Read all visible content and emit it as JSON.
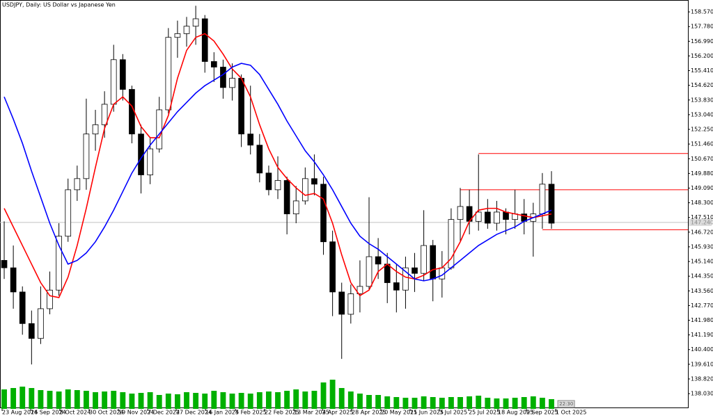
{
  "chart_data": {
    "type": "candlestick",
    "title": "USDJPY, Daily:  US Dollar vs Japanese Yen",
    "open": [
      145.2,
      144.8,
      143.5,
      141.8,
      141.0,
      142.6,
      143.6,
      146.5,
      149.0,
      149.6,
      152.0,
      152.5,
      153.6,
      156.0,
      154.4,
      152.0,
      149.8,
      151.2,
      153.3,
      157.2,
      157.4,
      157.8,
      158.2,
      155.9,
      155.6,
      154.5,
      155.0,
      152.0,
      151.4,
      149.9,
      149.0,
      149.5,
      147.7,
      148.4,
      149.6,
      149.3,
      146.2,
      143.5,
      142.3,
      143.4,
      143.8,
      145.4,
      145.0,
      144.0,
      143.6,
      144.8,
      144.5,
      146.0,
      144.2,
      144.8,
      147.4,
      148.1,
      147.3,
      147.8,
      147.2,
      147.8,
      147.4,
      147.7,
      147.3,
      147.7,
      149.3
    ],
    "high": [
      147.3,
      146.0,
      143.8,
      142.5,
      143.8,
      144.6,
      147.2,
      149.6,
      150.3,
      153.9,
      153.3,
      154.3,
      156.8,
      156.3,
      154.6,
      152.5,
      151.8,
      154.0,
      157.7,
      158.1,
      158.3,
      158.9,
      158.4,
      156.4,
      156.0,
      155.8,
      155.2,
      154.6,
      152.0,
      150.3,
      150.8,
      149.7,
      149.2,
      150.2,
      150.9,
      149.7,
      146.8,
      144.0,
      143.9,
      145.2,
      148.6,
      146.4,
      145.6,
      145.0,
      145.4,
      145.6,
      147.9,
      146.3,
      145.7,
      148.0,
      149.1,
      149.0,
      150.9,
      148.5,
      148.4,
      148.0,
      149.0,
      148.5,
      148.3,
      149.9,
      150.0
    ],
    "low": [
      144.2,
      142.6,
      141.2,
      139.6,
      140.7,
      142.3,
      143.3,
      146.2,
      148.4,
      149.0,
      151.1,
      151.8,
      153.2,
      153.8,
      151.5,
      148.8,
      149.3,
      151.0,
      153.1,
      156.1,
      156.7,
      156.8,
      155.3,
      154.8,
      153.9,
      153.8,
      151.3,
      150.9,
      149.4,
      148.7,
      148.5,
      146.6,
      147.2,
      148.2,
      148.7,
      145.5,
      142.2,
      139.9,
      141.8,
      142.4,
      143.6,
      144.2,
      142.9,
      142.4,
      142.6,
      143.5,
      144.1,
      143.0,
      143.2,
      144.7,
      146.2,
      146.6,
      146.8,
      146.9,
      146.8,
      146.6,
      146.9,
      146.6,
      145.4,
      146.9,
      146.9
    ],
    "close": [
      144.8,
      143.5,
      141.8,
      141.0,
      142.6,
      143.6,
      146.5,
      149.0,
      149.6,
      152.0,
      152.5,
      153.6,
      156.0,
      154.4,
      152.0,
      149.8,
      151.2,
      153.3,
      157.2,
      157.4,
      157.8,
      158.2,
      155.9,
      155.6,
      154.5,
      155.0,
      152.0,
      151.4,
      149.9,
      149.0,
      149.5,
      147.7,
      148.4,
      149.6,
      149.3,
      146.2,
      143.5,
      142.3,
      143.4,
      143.8,
      145.4,
      145.0,
      144.0,
      143.6,
      144.8,
      144.5,
      146.0,
      144.2,
      144.8,
      147.4,
      148.1,
      147.3,
      147.8,
      147.2,
      147.8,
      147.4,
      147.7,
      147.3,
      147.7,
      149.3,
      147.2
    ],
    "colors": {
      "up": "#ffffff",
      "down": "#000000",
      "outline": "#000000"
    },
    "moving_averages": [
      {
        "color": "#ff0000",
        "values": [
          148.0,
          147.0,
          146.0,
          145.0,
          144.0,
          143.3,
          143.2,
          144.3,
          146.0,
          148.0,
          150.2,
          152.3,
          153.6,
          154.0,
          153.5,
          152.4,
          151.8,
          151.8,
          153.0,
          155.0,
          156.5,
          157.2,
          157.4,
          157.0,
          156.3,
          155.5,
          155.0,
          154.0,
          152.5,
          151.2,
          150.2,
          149.6,
          149.1,
          148.7,
          148.8,
          148.5,
          147.2,
          145.5,
          144.0,
          143.3,
          143.6,
          144.6,
          145.0,
          144.6,
          144.3,
          144.2,
          144.4,
          144.7,
          144.8,
          145.3,
          146.2,
          147.3,
          147.9,
          148.0,
          148.0,
          147.8,
          147.7,
          147.6,
          147.5,
          147.6,
          147.7
        ]
      },
      {
        "color": "#0000ff",
        "values": [
          154.0,
          152.8,
          151.5,
          150.0,
          148.6,
          147.2,
          146.0,
          145.0,
          145.2,
          145.6,
          146.2,
          147.0,
          147.9,
          148.9,
          149.9,
          150.7,
          151.4,
          152.0,
          152.6,
          153.2,
          153.7,
          154.2,
          154.6,
          154.9,
          155.2,
          155.6,
          155.8,
          155.7,
          155.2,
          154.4,
          153.6,
          152.7,
          151.9,
          151.1,
          150.5,
          149.8,
          149.0,
          148.1,
          147.2,
          146.5,
          146.1,
          145.8,
          145.4,
          145.0,
          144.6,
          144.2,
          144.1,
          144.2,
          144.4,
          144.8,
          145.2,
          145.6,
          146.0,
          146.3,
          146.6,
          146.8,
          147.0,
          147.3,
          147.5,
          147.7,
          147.9
        ]
      }
    ],
    "volume": {
      "color": "#00b000",
      "values": [
        28,
        30,
        32,
        30,
        27,
        26,
        25,
        28,
        27,
        26,
        24,
        25,
        26,
        24,
        22,
        23,
        24,
        20,
        22,
        21,
        24,
        23,
        22,
        26,
        24,
        22,
        23,
        22,
        24,
        25,
        24,
        26,
        28,
        25,
        26,
        38,
        42,
        30,
        25,
        22,
        20,
        20,
        18,
        17,
        16,
        16,
        18,
        17,
        16,
        17,
        17,
        18,
        19,
        16,
        15,
        15,
        16,
        17,
        18,
        16,
        14
      ]
    },
    "levels": [
      {
        "value": 150.95,
        "start": 52,
        "color": "#ff0000"
      },
      {
        "value": 149.0,
        "start": 50,
        "color": "#ff0000"
      },
      {
        "value": 146.85,
        "start": 59,
        "color": "#ff0000"
      }
    ],
    "last_price": {
      "value": 147.24,
      "label": "147.240"
    },
    "countdown": "22:30",
    "xlim": [
      -0.46,
      74.96
    ],
    "ylim": [
      137.21,
      159.21
    ],
    "yticks": [
      {
        "value": 158.57,
        "label": "158.570"
      },
      {
        "value": 157.78,
        "label": "157.780"
      },
      {
        "value": 156.99,
        "label": "156.990"
      },
      {
        "value": 156.2,
        "label": "156.200"
      },
      {
        "value": 155.41,
        "label": "155.410"
      },
      {
        "value": 154.62,
        "label": "154.620"
      },
      {
        "value": 153.83,
        "label": "153.830"
      },
      {
        "value": 153.04,
        "label": "153.040"
      },
      {
        "value": 152.25,
        "label": "152.250"
      },
      {
        "value": 151.46,
        "label": "151.460"
      },
      {
        "value": 150.67,
        "label": "150.670"
      },
      {
        "value": 149.88,
        "label": "149.880"
      },
      {
        "value": 149.09,
        "label": "149.090"
      },
      {
        "value": 148.3,
        "label": "148.300"
      },
      {
        "value": 147.51,
        "label": "147.510"
      },
      {
        "value": 146.72,
        "label": "146.720"
      },
      {
        "value": 145.93,
        "label": "145.930"
      },
      {
        "value": 145.14,
        "label": "145.140"
      },
      {
        "value": 144.35,
        "label": "144.350"
      },
      {
        "value": 143.56,
        "label": "143.560"
      },
      {
        "value": 142.77,
        "label": "142.770"
      },
      {
        "value": 141.98,
        "label": "141.980"
      },
      {
        "value": 141.19,
        "label": "141.190"
      },
      {
        "value": 140.4,
        "label": "140.400"
      },
      {
        "value": 139.61,
        "label": "139.610"
      },
      {
        "value": 138.82,
        "label": "138.820"
      },
      {
        "value": 138.03,
        "label": "138.030"
      }
    ],
    "xticks": [
      {
        "value": -0.23,
        "label": "23 Aug 2024"
      },
      {
        "value": 2.9,
        "label": "16 Sep 2024"
      },
      {
        "value": 6.1,
        "label": "8 Oct 2024"
      },
      {
        "value": 9.31,
        "label": "30 Oct 2024"
      },
      {
        "value": 12.52,
        "label": "19 Nov 2024"
      },
      {
        "value": 15.73,
        "label": "7 Dec 2024"
      },
      {
        "value": 18.85,
        "label": "27 Dec 2024"
      },
      {
        "value": 22.06,
        "label": "16 Jan 2025"
      },
      {
        "value": 25.34,
        "label": "4 Feb 2025"
      },
      {
        "value": 28.55,
        "label": "22 Feb 2025"
      },
      {
        "value": 31.76,
        "label": "13 Mar 2025"
      },
      {
        "value": 34.89,
        "label": "4 Apr 2025"
      },
      {
        "value": 38.09,
        "label": "28 Apr 2025"
      },
      {
        "value": 41.3,
        "label": "20 May 2025"
      },
      {
        "value": 44.5,
        "label": "11 Jun 2025"
      },
      {
        "value": 47.71,
        "label": "3 Jul 2025"
      },
      {
        "value": 50.92,
        "label": "25 Jul 2025"
      },
      {
        "value": 54.12,
        "label": "18 Aug 2025"
      },
      {
        "value": 57.25,
        "label": "9 Sep 2025"
      },
      {
        "value": 60.46,
        "label": "1 Oct 2025"
      }
    ]
  }
}
